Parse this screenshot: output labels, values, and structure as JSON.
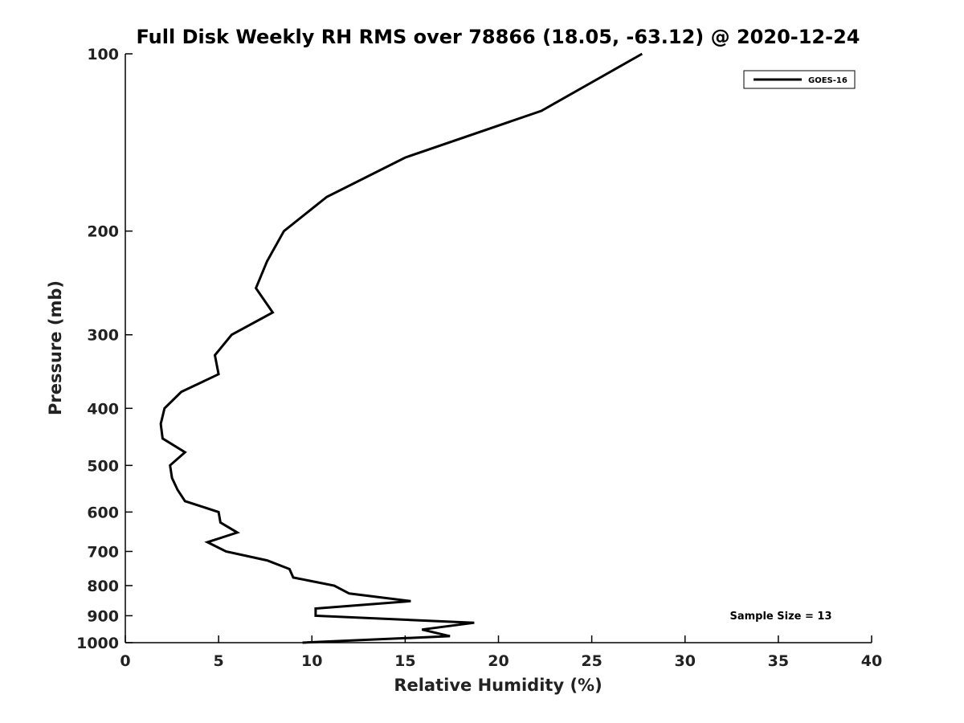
{
  "chart_data": {
    "type": "line",
    "title": "Full Disk Weekly RH RMS over 78866 (18.05, -63.12) @ 2020-12-24",
    "xlabel": "Relative Humidity (%)",
    "ylabel": "Pressure (mb)",
    "xlim": [
      0,
      40
    ],
    "ylim": [
      100,
      1000
    ],
    "y_scale": "log",
    "y_reversed": true,
    "x_ticks": [
      0,
      5,
      10,
      15,
      20,
      25,
      30,
      35,
      40
    ],
    "y_ticks": [
      100,
      200,
      300,
      400,
      500,
      600,
      700,
      800,
      900,
      1000
    ],
    "grid": false,
    "legend_position": "top-right",
    "series": [
      {
        "name": "GOES-16",
        "color": "#000000",
        "points": [
          {
            "x": 27.7,
            "y": 100
          },
          {
            "x": 22.3,
            "y": 125
          },
          {
            "x": 15.0,
            "y": 150
          },
          {
            "x": 10.8,
            "y": 175
          },
          {
            "x": 8.5,
            "y": 200
          },
          {
            "x": 7.6,
            "y": 225
          },
          {
            "x": 7.0,
            "y": 250
          },
          {
            "x": 7.9,
            "y": 275
          },
          {
            "x": 5.7,
            "y": 300
          },
          {
            "x": 4.8,
            "y": 325
          },
          {
            "x": 5.0,
            "y": 350
          },
          {
            "x": 3.0,
            "y": 375
          },
          {
            "x": 2.1,
            "y": 400
          },
          {
            "x": 1.9,
            "y": 425
          },
          {
            "x": 2.0,
            "y": 450
          },
          {
            "x": 3.2,
            "y": 475
          },
          {
            "x": 2.4,
            "y": 500
          },
          {
            "x": 2.5,
            "y": 525
          },
          {
            "x": 2.8,
            "y": 550
          },
          {
            "x": 3.2,
            "y": 575
          },
          {
            "x": 5.0,
            "y": 600
          },
          {
            "x": 5.1,
            "y": 625
          },
          {
            "x": 6.0,
            "y": 650
          },
          {
            "x": 4.4,
            "y": 675
          },
          {
            "x": 5.4,
            "y": 700
          },
          {
            "x": 7.6,
            "y": 725
          },
          {
            "x": 8.8,
            "y": 750
          },
          {
            "x": 9.0,
            "y": 775
          },
          {
            "x": 11.2,
            "y": 800
          },
          {
            "x": 12.0,
            "y": 825
          },
          {
            "x": 15.3,
            "y": 850
          },
          {
            "x": 10.2,
            "y": 875
          },
          {
            "x": 10.2,
            "y": 900
          },
          {
            "x": 18.7,
            "y": 925
          },
          {
            "x": 15.9,
            "y": 950
          },
          {
            "x": 17.4,
            "y": 975
          },
          {
            "x": 9.5,
            "y": 1000
          }
        ]
      }
    ],
    "annotations": [
      {
        "text": "Sample Size = 13",
        "position": "bottom-right"
      }
    ]
  }
}
